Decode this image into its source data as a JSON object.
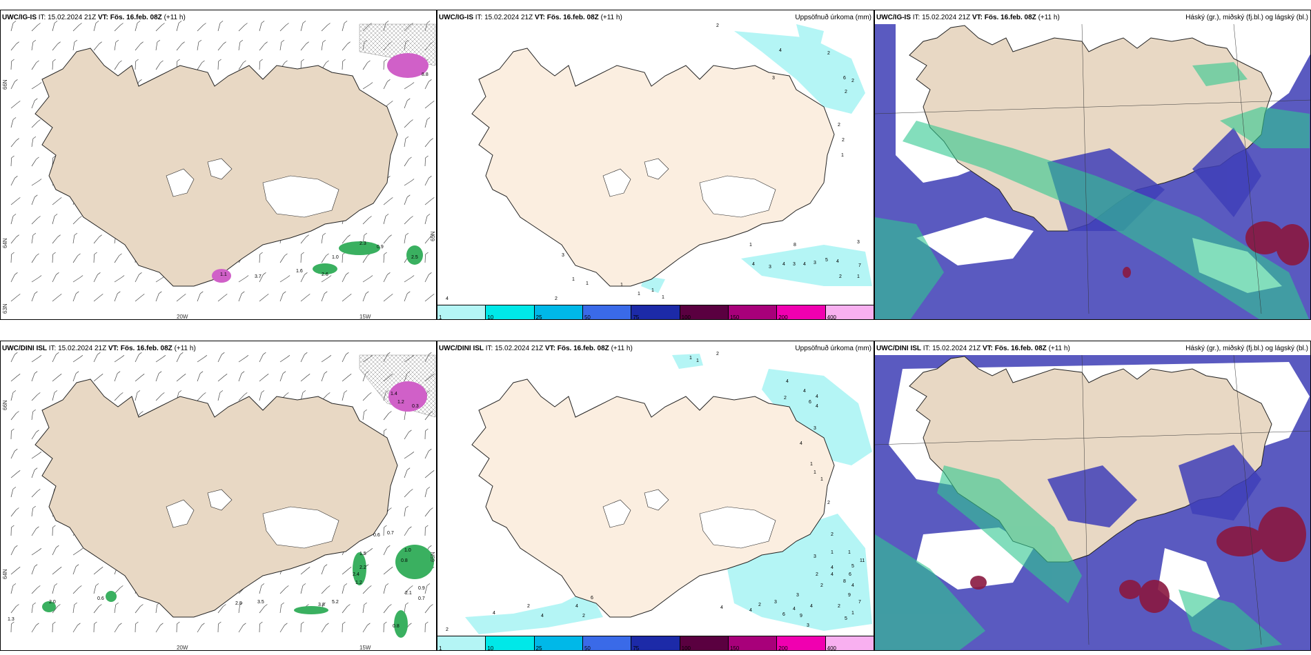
{
  "rows": [
    {
      "model": "UWC/IG-IS",
      "it_label": "IT:",
      "it_value": "15.02.2024 21Z",
      "vt_label": "VT:",
      "vt_value": "Fös. 16.feb. 08Z",
      "lead": "(+11 h)",
      "wind_axis": {
        "lat1": "66N",
        "lat2": "64N",
        "lat3": "65N",
        "lon1": "20W",
        "lon2": "15W",
        "lat_left": "63N"
      }
    },
    {
      "model": "UWC/DINI ISL",
      "it_label": "IT:",
      "it_value": "15.02.2024 21Z",
      "vt_label": "VT:",
      "vt_value": "Fös. 16.feb. 08Z",
      "lead": "(+11 h)",
      "wind_axis": {
        "lat1": "66N",
        "lat2": "64N",
        "lat3": "65N",
        "lon1": "20W",
        "lon2": "15W",
        "lat_left": ""
      }
    }
  ],
  "precip_panel": {
    "title_right": "Uppsöfnuð úrkoma (mm)",
    "colorbar": {
      "labels": [
        "1",
        "10",
        "25",
        "50",
        "75",
        "100",
        "150",
        "200",
        "400"
      ],
      "colors": [
        "#b4f5f5",
        "#00e8e8",
        "#00b8e8",
        "#3a6ae8",
        "#1c2aa8",
        "#5a0040",
        "#a8007a",
        "#f000b0",
        "#f8b0f0"
      ]
    }
  },
  "cloud_panel": {
    "title_right": "Háský (gr.), miðský (fj.bl.) og lágský (bl.)"
  },
  "wind_values_row1": [
    "8.8",
    "1.0",
    "2.3",
    "0.9",
    "2.5",
    "1.6",
    "2.6",
    "3.7",
    "1.1"
  ],
  "wind_values_row2": [
    "1.4",
    "1.2",
    "0.3",
    "1.0",
    "0.7",
    "0.8",
    "2.1",
    "0.9",
    "1.5",
    "2.2",
    "0.6",
    "2.8",
    "2.0",
    "1.3",
    "3.5",
    "3.8",
    "5.2",
    "0.6",
    "2.4",
    "0.7",
    "0.8",
    "1.2"
  ],
  "precip_values_row1": [
    "2",
    "4",
    "3",
    "2",
    "6",
    "2",
    "2",
    "2",
    "2",
    "1",
    "4",
    "3",
    "1",
    "1",
    "1",
    "1",
    "1",
    "2",
    "1",
    "4",
    "8",
    "3",
    "4",
    "3",
    "4",
    "3",
    "5",
    "4",
    "7",
    "3",
    "2",
    "1",
    "1"
  ],
  "precip_values_row2": [
    "2",
    "1",
    "1",
    "4",
    "2",
    "4",
    "4",
    "6",
    "4",
    "3",
    "4",
    "1",
    "1",
    "1",
    "2",
    "1",
    "1",
    "3",
    "2",
    "4",
    "5",
    "4",
    "6",
    "8",
    "11",
    "4",
    "9",
    "7",
    "3",
    "4",
    "4",
    "2",
    "2",
    "5",
    "1",
    "2",
    "3",
    "2",
    "4",
    "6",
    "9",
    "3",
    "2",
    "4",
    "2",
    "4",
    "4",
    "2",
    "4",
    "6"
  ],
  "colors": {
    "land": "#e8d8c4",
    "land_precip": "#fbeee0",
    "ocean_cloud": "#5a5ac0",
    "high_cloud_green": "#30c890",
    "low_cloud_red": "#8a1840"
  }
}
